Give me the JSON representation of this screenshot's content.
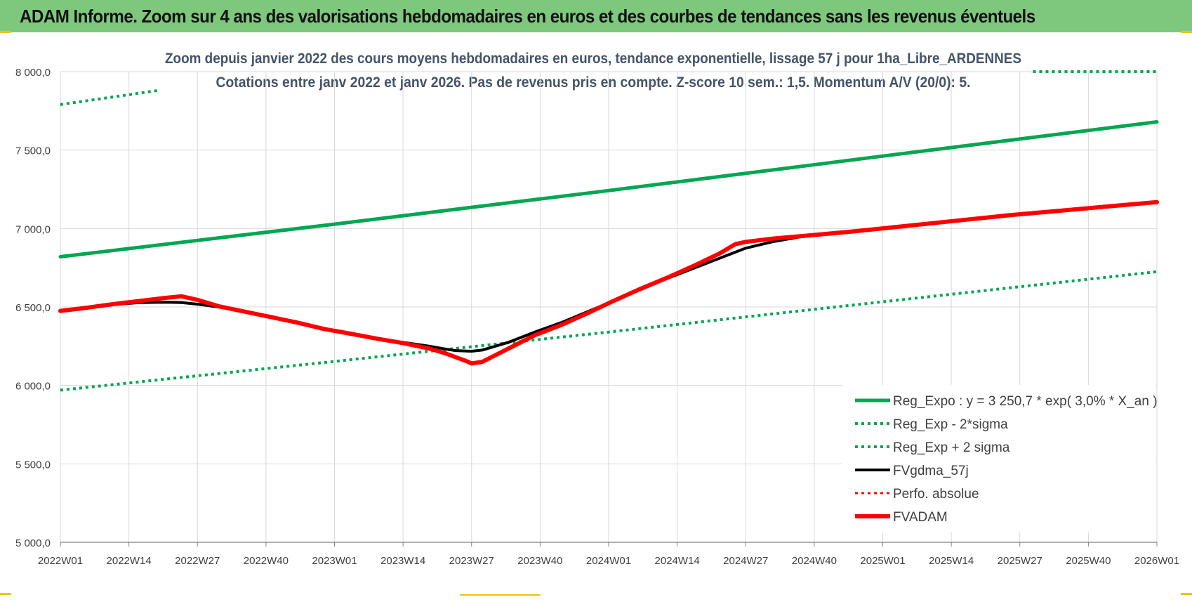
{
  "header": {
    "title": "ADAM Informe. Zoom sur 4 ans des valorisations hebdomadaires en euros et des courbes de tendances sans les revenus éventuels"
  },
  "colors": {
    "header_bg": "#7ec87e",
    "reg_expo": "#00a651",
    "sigma": "#00a651",
    "fvgdma": "#000000",
    "perfo": "#ff0000",
    "fvadam": "#ff0000",
    "grid": "#d9d9d9",
    "title_text": "#44546a"
  },
  "chart_data": {
    "type": "line",
    "title": "Zoom depuis janvier 2022 des cours moyens hebdomadaires en euros, tendance exponentielle, lissage 57 j pour 1ha_Libre_ARDENNES",
    "subtitle": "Cotations entre janv 2022 et janv 2026. Pas de revenus pris en compte. Z-score 10 sem.: 1,5. Momentum A/V (20/0): 5.",
    "xlabel": "",
    "ylabel": "",
    "ylim": [
      5000,
      8000
    ],
    "yticks": [
      5000,
      5500,
      6000,
      6500,
      7000,
      7500,
      8000
    ],
    "ytick_labels": [
      "5 000,0",
      "5 500,0",
      "6 000,0",
      "6 500,0",
      "7 000,0",
      "7 500,0",
      "8 000,0"
    ],
    "x_range_weeks": [
      0,
      208
    ],
    "xtick_weeks": [
      0,
      13,
      26,
      39,
      52,
      65,
      78,
      91,
      104,
      117,
      130,
      143,
      156,
      169,
      182,
      195,
      208
    ],
    "categories": [
      "2022W01",
      "2022W14",
      "2022W27",
      "2022W40",
      "2023W01",
      "2023W14",
      "2023W27",
      "2023W40",
      "2024W01",
      "2024W14",
      "2024W27",
      "2024W40",
      "2025W01",
      "2025W14",
      "2025W27",
      "2025W40",
      "2026W01"
    ],
    "grid": true,
    "legend_position": "bottom-right",
    "series": [
      {
        "name": "Reg_Expo : y = 3 250,7 * exp( 3,0% *  X_an )",
        "style": "solid",
        "width": 5,
        "color": "#00a651",
        "x": [
          0,
          52,
          104,
          156,
          208
        ],
        "values": [
          6820,
          7028,
          7242,
          7462,
          7680
        ]
      },
      {
        "name": "Reg_Exp - 2*sigma",
        "style": "dotted",
        "width": 4,
        "color": "#00a651",
        "x": [
          0,
          52,
          104,
          156,
          208
        ],
        "values": [
          5970,
          6153,
          6340,
          6533,
          6725
        ]
      },
      {
        "name": "Reg_Exp + 2 sigma",
        "style": "dotted",
        "width": 4,
        "color": "#00a651",
        "x": [
          0,
          18.5
        ],
        "values": [
          7790,
          7880
        ],
        "x2": [
          184.5,
          208
        ],
        "values2": [
          8000,
          8000
        ]
      },
      {
        "name": "FVgdma_57j",
        "style": "solid",
        "width": 4,
        "color": "#000000",
        "x": [
          0,
          5,
          10,
          15,
          20,
          23,
          26,
          30,
          35,
          40,
          45,
          50,
          55,
          60,
          65,
          70,
          73,
          75,
          78,
          80,
          85,
          90,
          95,
          100,
          105,
          110,
          115,
          120,
          125,
          130,
          135,
          140,
          145,
          150,
          160,
          170,
          180,
          190,
          200,
          208
        ],
        "values": [
          6475,
          6495,
          6515,
          6528,
          6530,
          6528,
          6518,
          6500,
          6470,
          6440,
          6400,
          6360,
          6330,
          6300,
          6275,
          6250,
          6232,
          6222,
          6218,
          6225,
          6275,
          6340,
          6400,
          6470,
          6540,
          6610,
          6680,
          6745,
          6810,
          6875,
          6915,
          6945,
          6965,
          6980,
          7015,
          7050,
          7085,
          7115,
          7145,
          7165
        ]
      },
      {
        "name": "Perfo. absolue",
        "style": "dotted",
        "width": 3,
        "color": "#ff0000",
        "x": [],
        "values": []
      },
      {
        "name": "FVADAM",
        "style": "solid",
        "width": 6,
        "color": "#ff0000",
        "x": [
          0,
          5,
          10,
          15,
          20,
          23,
          26,
          30,
          35,
          40,
          45,
          50,
          55,
          60,
          65,
          70,
          73,
          75,
          77,
          78,
          80,
          85,
          90,
          95,
          100,
          105,
          110,
          115,
          120,
          125,
          128,
          130,
          135,
          140,
          145,
          150,
          160,
          170,
          180,
          190,
          200,
          208
        ],
        "values": [
          6475,
          6495,
          6518,
          6538,
          6558,
          6568,
          6545,
          6505,
          6470,
          6435,
          6400,
          6360,
          6330,
          6298,
          6270,
          6235,
          6205,
          6180,
          6155,
          6140,
          6150,
          6235,
          6320,
          6385,
          6460,
          6540,
          6615,
          6685,
          6760,
          6840,
          6900,
          6915,
          6935,
          6950,
          6965,
          6980,
          7015,
          7050,
          7085,
          7115,
          7145,
          7168
        ]
      }
    ]
  }
}
